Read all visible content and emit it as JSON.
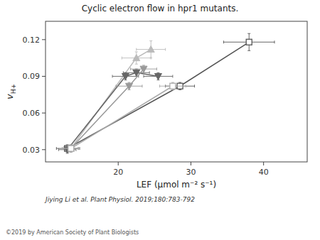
{
  "chart_data": {
    "type": "line",
    "title": "Cyclic electron flow in hpr1 mutants.",
    "xlabel": "LEF (μmol m⁻² s⁻¹)",
    "ylabel": "vH+",
    "annotations": [
      "Jiying Li et al. Plant Physiol. 2019;180:783-792",
      "©2019 by American Society of Plant Biologists"
    ],
    "xlim": [
      10,
      46
    ],
    "ylim": [
      0.02,
      0.135
    ],
    "xticks": [
      20,
      30,
      40
    ],
    "yticks": [
      0.03,
      0.06,
      0.09,
      0.12
    ],
    "grid": false,
    "series": [
      {
        "color": "#555555",
        "marker": "square",
        "x": [
          13.0,
          28.5,
          38.0
        ],
        "values": [
          0.031,
          0.082,
          0.118
        ],
        "xerr": [
          1.5,
          2.0,
          3.5
        ],
        "yerr": [
          0.003,
          0.003,
          0.007
        ]
      },
      {
        "color": "#bbbbbb",
        "marker": "triangle-up",
        "x": [
          13.5,
          22.5,
          24.5
        ],
        "values": [
          0.031,
          0.105,
          0.112
        ],
        "xerr": [
          1.2,
          2.0,
          2.0
        ],
        "yerr": [
          0.003,
          0.005,
          0.007
        ]
      },
      {
        "color": "#666666",
        "marker": "triangle-down",
        "x": [
          13.0,
          21.0,
          22.5,
          25.5
        ],
        "values": [
          0.03,
          0.09,
          0.093,
          0.09
        ],
        "xerr": [
          1.2,
          1.8,
          1.8,
          2.0
        ],
        "yerr": [
          0.003,
          0.003,
          0.003,
          0.003
        ]
      },
      {
        "color": "#999999",
        "marker": "triangle-down",
        "x": [
          13.5,
          21.5,
          23.5
        ],
        "values": [
          0.031,
          0.082,
          0.096
        ],
        "xerr": [
          1.2,
          1.8,
          1.8
        ],
        "yerr": [
          0.003,
          0.003,
          0.003
        ]
      },
      {
        "color": "#aaaaaa",
        "marker": "square",
        "x": [
          13.5,
          27.5
        ],
        "values": [
          0.031,
          0.082
        ],
        "xerr": [
          1.2,
          1.8
        ],
        "yerr": [
          0.003,
          0.003
        ]
      }
    ]
  }
}
